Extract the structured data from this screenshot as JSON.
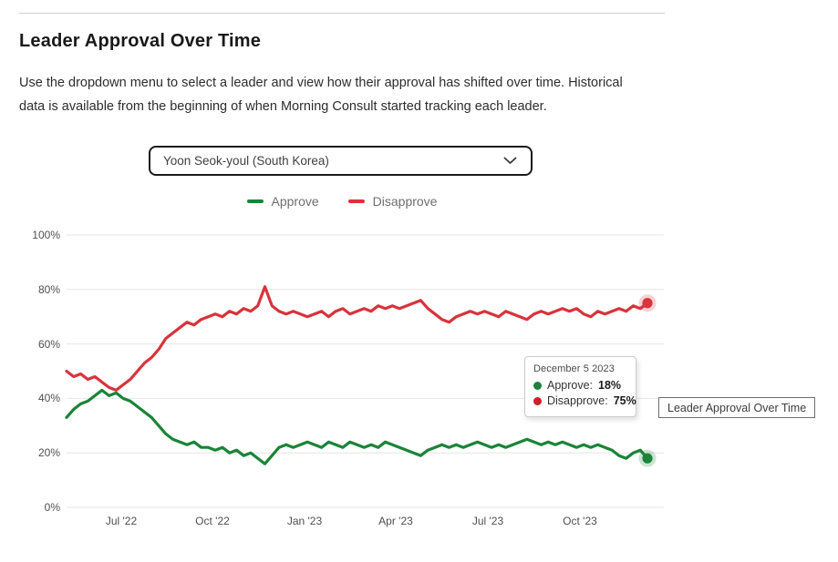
{
  "header": {
    "title": "Leader Approval Over Time",
    "description": "Use the dropdown menu to select a leader and view how their approval has shifted over time. Historical data is available from the beginning of when Morning Consult started tracking each leader."
  },
  "dropdown": {
    "selected_option": "Yoon Seok-youl (South Korea)",
    "chevron_icon": "chevron-down"
  },
  "legend": [
    {
      "label": "Approve",
      "color": "#1b8438"
    },
    {
      "label": "Disapprove",
      "color": "#d7343c"
    }
  ],
  "tooltip": {
    "date": "December 5 2023",
    "rows": [
      {
        "label": "Approve:",
        "value": "18%",
        "color": "#1b8438"
      },
      {
        "label": "Disapprove:",
        "value": "75%",
        "color": "#cb2030"
      }
    ]
  },
  "hover_title": "Leader Approval Over Time",
  "chart_data": {
    "type": "line",
    "title": "Leader Approval Over Time",
    "xlabel": "",
    "ylabel": "",
    "ylim": [
      0,
      100
    ],
    "grid": "horizontal",
    "legend_position": "top",
    "end_markers": true,
    "yticks": [
      "0%",
      "20%",
      "40%",
      "60%",
      "80%",
      "100%"
    ],
    "ytick_values": [
      0,
      20,
      40,
      60,
      80,
      100
    ],
    "xticks": [
      "Jul '22",
      "Oct '22",
      "Jan '23",
      "Apr '23",
      "Jul '23",
      "Oct '23"
    ],
    "x_range": [
      "2022-05-09",
      "2023-12-05"
    ],
    "x": [
      "2022-05-09",
      "2022-05-16",
      "2022-05-23",
      "2022-05-30",
      "2022-06-06",
      "2022-06-13",
      "2022-06-20",
      "2022-06-27",
      "2022-07-04",
      "2022-07-11",
      "2022-07-18",
      "2022-07-25",
      "2022-08-01",
      "2022-08-08",
      "2022-08-15",
      "2022-08-22",
      "2022-08-29",
      "2022-09-05",
      "2022-09-12",
      "2022-09-19",
      "2022-09-26",
      "2022-10-03",
      "2022-10-10",
      "2022-10-17",
      "2022-10-24",
      "2022-10-31",
      "2022-11-07",
      "2022-11-14",
      "2022-11-21",
      "2022-11-28",
      "2022-12-05",
      "2022-12-12",
      "2022-12-19",
      "2022-12-26",
      "2023-01-02",
      "2023-01-09",
      "2023-01-16",
      "2023-01-23",
      "2023-01-30",
      "2023-02-06",
      "2023-02-13",
      "2023-02-20",
      "2023-02-27",
      "2023-03-06",
      "2023-03-13",
      "2023-03-20",
      "2023-03-27",
      "2023-04-03",
      "2023-04-10",
      "2023-04-17",
      "2023-04-24",
      "2023-05-01",
      "2023-05-08",
      "2023-05-15",
      "2023-05-22",
      "2023-05-29",
      "2023-06-05",
      "2023-06-12",
      "2023-06-19",
      "2023-06-26",
      "2023-07-03",
      "2023-07-10",
      "2023-07-17",
      "2023-07-24",
      "2023-07-31",
      "2023-08-07",
      "2023-08-14",
      "2023-08-21",
      "2023-08-28",
      "2023-09-04",
      "2023-09-11",
      "2023-09-18",
      "2023-09-25",
      "2023-10-02",
      "2023-10-09",
      "2023-10-16",
      "2023-10-23",
      "2023-10-30",
      "2023-11-06",
      "2023-11-13",
      "2023-11-20",
      "2023-11-27",
      "2023-12-05"
    ],
    "series": [
      {
        "name": "Approve",
        "color": "#1b8438",
        "values": [
          33,
          36,
          38,
          39,
          41,
          43,
          41,
          42,
          40,
          39,
          37,
          35,
          33,
          30,
          27,
          25,
          24,
          23,
          24,
          22,
          22,
          21,
          22,
          20,
          21,
          19,
          20,
          18,
          16,
          19,
          22,
          23,
          22,
          23,
          24,
          23,
          22,
          24,
          23,
          22,
          24,
          23,
          22,
          23,
          22,
          24,
          23,
          22,
          21,
          20,
          19,
          21,
          22,
          23,
          22,
          23,
          22,
          23,
          24,
          23,
          22,
          23,
          22,
          23,
          24,
          25,
          24,
          23,
          24,
          23,
          24,
          23,
          22,
          23,
          22,
          23,
          22,
          21,
          19,
          18,
          20,
          21,
          18
        ]
      },
      {
        "name": "Disapprove",
        "color": "#d7343c",
        "values": [
          50,
          48,
          49,
          47,
          48,
          46,
          44,
          43,
          45,
          47,
          50,
          53,
          55,
          58,
          62,
          64,
          66,
          68,
          67,
          69,
          70,
          71,
          70,
          72,
          71,
          73,
          72,
          74,
          81,
          74,
          72,
          71,
          72,
          71,
          70,
          71,
          72,
          70,
          72,
          73,
          71,
          72,
          73,
          72,
          74,
          73,
          74,
          73,
          74,
          75,
          76,
          73,
          71,
          69,
          68,
          70,
          71,
          72,
          71,
          72,
          71,
          70,
          72,
          71,
          70,
          69,
          71,
          72,
          71,
          72,
          73,
          72,
          73,
          71,
          70,
          72,
          71,
          72,
          73,
          72,
          74,
          73,
          75
        ]
      }
    ],
    "final_values": {
      "Approve": "18%",
      "Disapprove": "75%"
    }
  }
}
